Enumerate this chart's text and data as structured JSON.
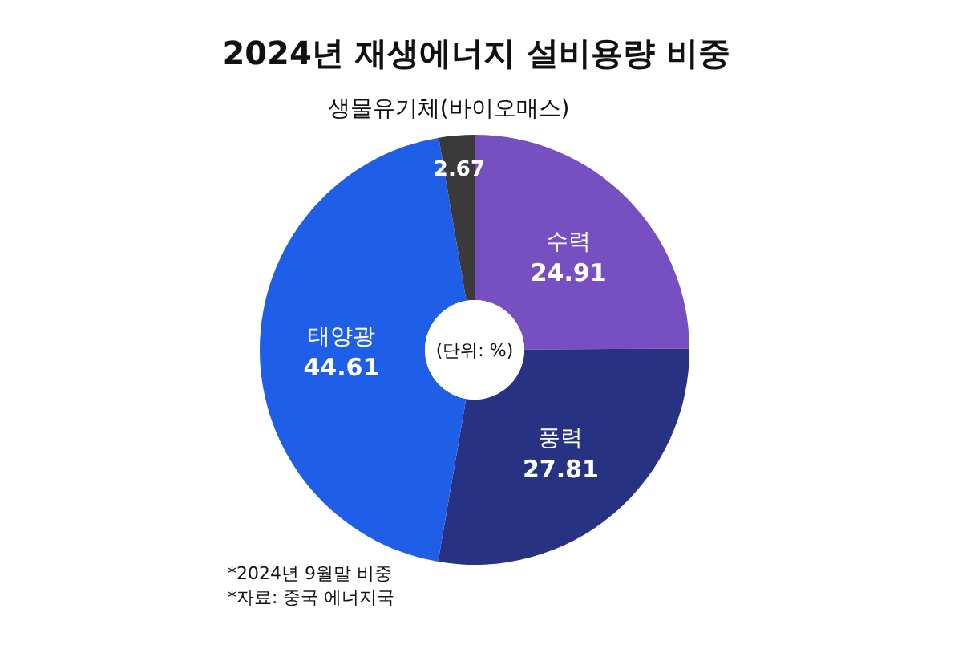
{
  "chart_data": {
    "type": "donut",
    "title": "2024년 재생에너지 설비용량 비중",
    "categories": [
      "수력",
      "풍력",
      "태양광",
      "생물유기체(바이오매스)"
    ],
    "values": [
      24.91,
      27.81,
      44.61,
      2.67
    ],
    "colors": [
      "#7650c0",
      "#273282",
      "#1f5ee6",
      "#3a3a3a"
    ],
    "data_labels": true,
    "annotations": [
      "(단위: %)",
      "*2024년 9월말 비중",
      "*자료: 중국 에너지국"
    ]
  }
}
